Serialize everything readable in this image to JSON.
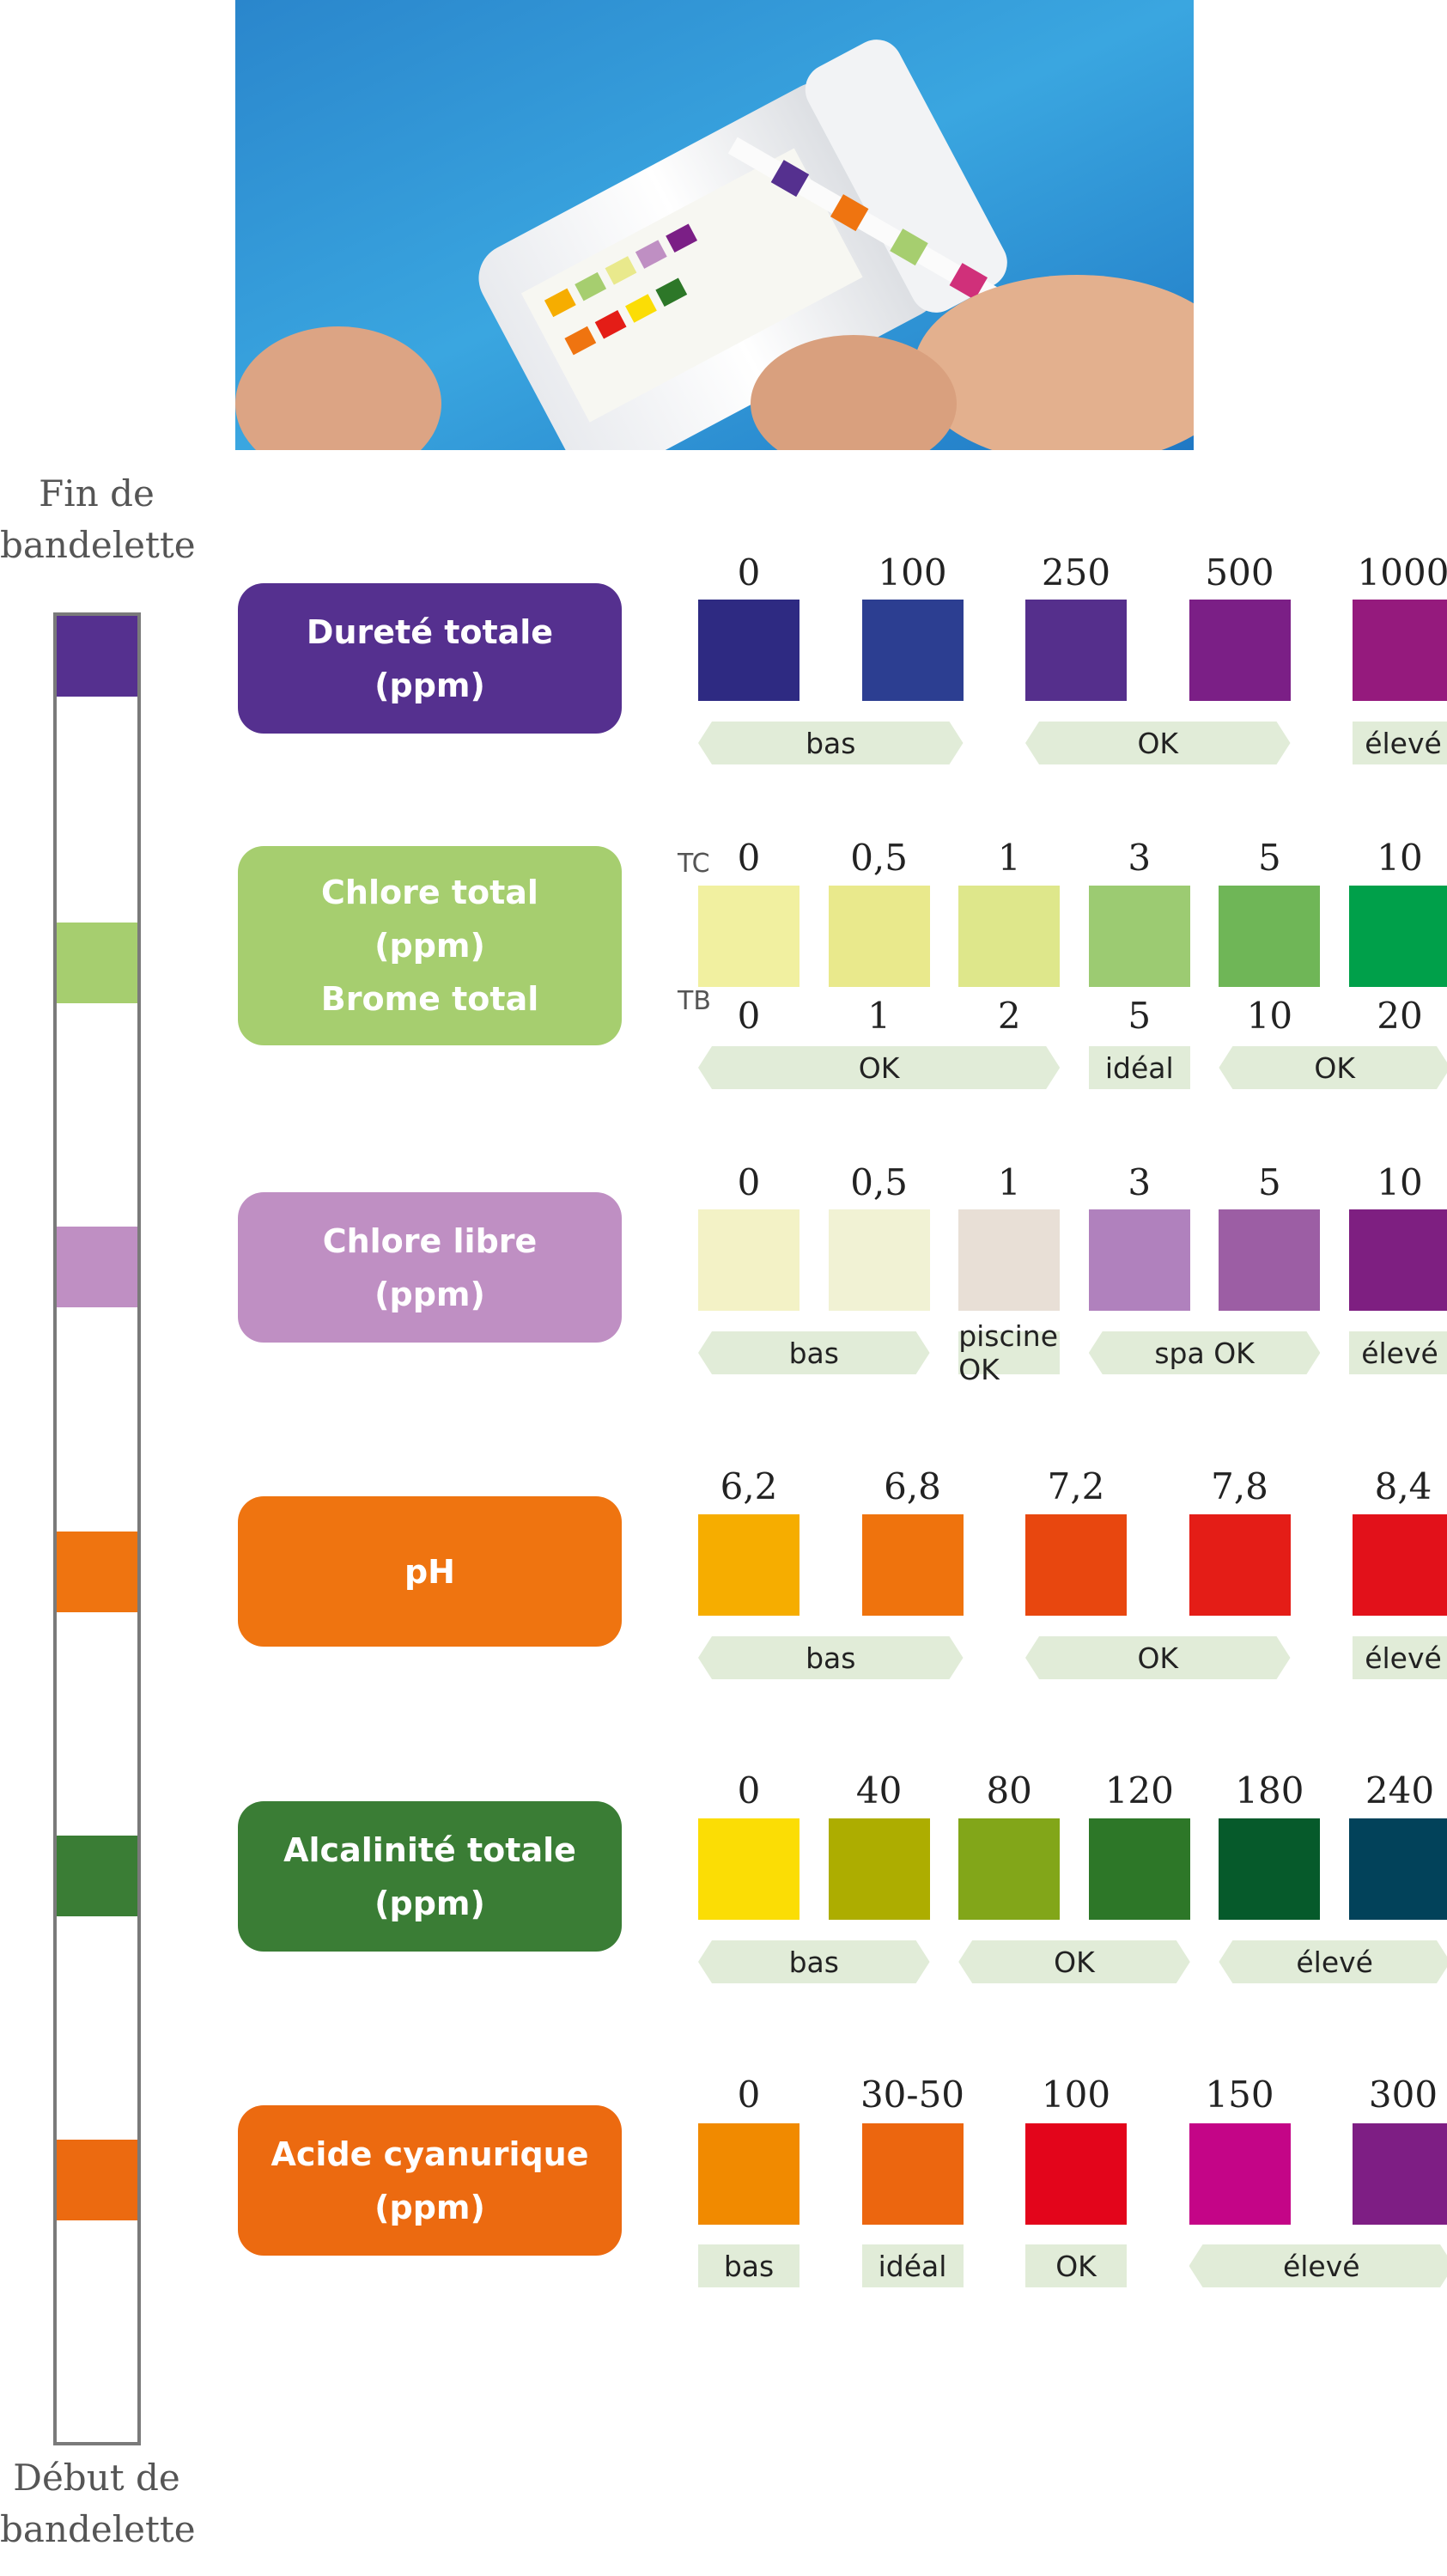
{
  "labels": {
    "strip_end": "Fin de bandelette",
    "strip_start": "Début de bandelette",
    "tc": "TC",
    "tb": "TB"
  },
  "strip_pads": [
    "#55308f",
    "#a6ce6f",
    "#bf8fc3",
    "#ef7410",
    "#3a7d35",
    "#ec6a10"
  ],
  "params": [
    {
      "title": "Dureté totale\n(ppm)",
      "color": "#55308f",
      "values": [
        "0",
        "100",
        "250",
        "500",
        "1000"
      ],
      "colors": [
        "#2e2a82",
        "#2c3e91",
        "#552f8c",
        "#7b1f86",
        "#951a7d"
      ],
      "bands": [
        {
          "label": "bas",
          "from": 0,
          "to": 1
        },
        {
          "label": "OK",
          "from": 2,
          "to": 3
        },
        {
          "label": "élevé",
          "from": 4,
          "to": 4
        }
      ]
    },
    {
      "title": "Chlore total\n(ppm)\nBrome total",
      "color": "#a6ce6f",
      "values": [
        "0",
        "0,5",
        "1",
        "3",
        "5",
        "10"
      ],
      "values_b": [
        "0",
        "1",
        "2",
        "5",
        "10",
        "20"
      ],
      "colors": [
        "#f1f0a0",
        "#e9e98c",
        "#dee78b",
        "#9ccb72",
        "#6fb657",
        "#00a04a"
      ],
      "bands": [
        {
          "label": "OK",
          "from": 0,
          "to": 2
        },
        {
          "label": "idéal",
          "from": 3,
          "to": 3
        },
        {
          "label": "OK",
          "from": 4,
          "to": 5
        }
      ]
    },
    {
      "title": "Chlore libre\n(ppm)",
      "color": "#bf8fc3",
      "values": [
        "0",
        "0,5",
        "1",
        "3",
        "5",
        "10"
      ],
      "colors": [
        "#f3f2c6",
        "#f1f2d4",
        "#e8dfd6",
        "#b081bd",
        "#9c5ea4",
        "#7e1f81"
      ],
      "bands": [
        {
          "label": "bas",
          "from": 0,
          "to": 1
        },
        {
          "label": "piscine OK",
          "from": 2,
          "to": 2
        },
        {
          "label": "spa OK",
          "from": 3,
          "to": 4
        },
        {
          "label": "élevé",
          "from": 5,
          "to": 5
        }
      ]
    },
    {
      "title": "pH",
      "color": "#ef7410",
      "values": [
        "6,2",
        "6,8",
        "7,2",
        "7,8",
        "8,4"
      ],
      "colors": [
        "#f6ad00",
        "#ef730d",
        "#e8470f",
        "#e41d17",
        "#e2111a"
      ],
      "bands": [
        {
          "label": "bas",
          "from": 0,
          "to": 1
        },
        {
          "label": "OK",
          "from": 2,
          "to": 3
        },
        {
          "label": "élevé",
          "from": 4,
          "to": 4
        }
      ]
    },
    {
      "title": "Alcalinité totale\n(ppm)",
      "color": "#3a7d35",
      "values": [
        "0",
        "40",
        "80",
        "120",
        "180",
        "240"
      ],
      "colors": [
        "#fbdd05",
        "#adad00",
        "#82a619",
        "#2d7728",
        "#065a2b",
        "#02425a"
      ],
      "bands": [
        {
          "label": "bas",
          "from": 0,
          "to": 1
        },
        {
          "label": "OK",
          "from": 2,
          "to": 3
        },
        {
          "label": "élevé",
          "from": 4,
          "to": 5
        }
      ]
    },
    {
      "title": "Acide cyanurique\n(ppm)",
      "color": "#ec6a10",
      "values": [
        "0",
        "30-50",
        "100",
        "150",
        "300"
      ],
      "colors": [
        "#f18a00",
        "#ec660f",
        "#e3051b",
        "#c40587",
        "#7e1e84"
      ],
      "bands": [
        {
          "label": "bas",
          "from": 0,
          "to": 0
        },
        {
          "label": "idéal",
          "from": 1,
          "to": 1
        },
        {
          "label": "OK",
          "from": 2,
          "to": 2
        },
        {
          "label": "élevé",
          "from": 3,
          "to": 4
        }
      ]
    }
  ]
}
